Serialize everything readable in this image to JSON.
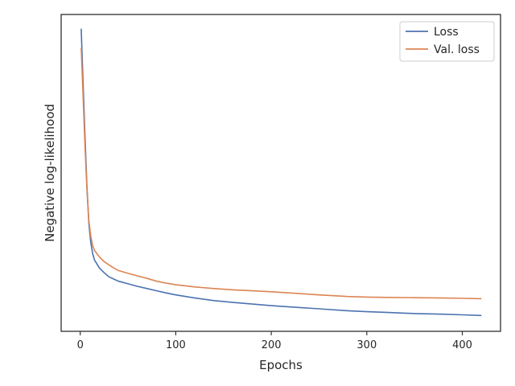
{
  "chart_data": {
    "type": "line",
    "xlabel": "Epochs",
    "ylabel": "Negative log-likelihood",
    "xlim": [
      -20,
      440
    ],
    "ylim": [
      0,
      1
    ],
    "xticks": [
      0,
      100,
      200,
      300,
      400
    ],
    "show_yticks": false,
    "grid": false,
    "legend_position": "top-right",
    "series": [
      {
        "name": "Loss",
        "color": "#4c72b0",
        "x": [
          1,
          3,
          5,
          7,
          9,
          11,
          13,
          15,
          20,
          25,
          30,
          35,
          40,
          50,
          60,
          70,
          80,
          90,
          100,
          120,
          140,
          160,
          180,
          200,
          220,
          250,
          280,
          300,
          320,
          350,
          380,
          400,
          420
        ],
        "y": [
          0.955,
          0.78,
          0.61,
          0.46,
          0.34,
          0.28,
          0.245,
          0.225,
          0.2,
          0.185,
          0.172,
          0.165,
          0.158,
          0.15,
          0.142,
          0.135,
          0.128,
          0.121,
          0.115,
          0.105,
          0.097,
          0.091,
          0.086,
          0.081,
          0.077,
          0.071,
          0.065,
          0.062,
          0.06,
          0.056,
          0.054,
          0.052,
          0.05
        ]
      },
      {
        "name": "Val. loss",
        "color": "#dd8452",
        "x": [
          1,
          3,
          5,
          7,
          9,
          11,
          13,
          15,
          20,
          25,
          30,
          35,
          40,
          50,
          60,
          70,
          80,
          90,
          100,
          120,
          140,
          160,
          180,
          200,
          220,
          250,
          280,
          300,
          320,
          350,
          380,
          400,
          420
        ],
        "y": [
          0.895,
          0.74,
          0.58,
          0.45,
          0.35,
          0.3,
          0.27,
          0.255,
          0.235,
          0.22,
          0.21,
          0.2,
          0.192,
          0.183,
          0.175,
          0.167,
          0.158,
          0.152,
          0.147,
          0.14,
          0.135,
          0.131,
          0.128,
          0.125,
          0.121,
          0.115,
          0.11,
          0.108,
          0.107,
          0.106,
          0.105,
          0.104,
          0.103
        ]
      }
    ]
  }
}
